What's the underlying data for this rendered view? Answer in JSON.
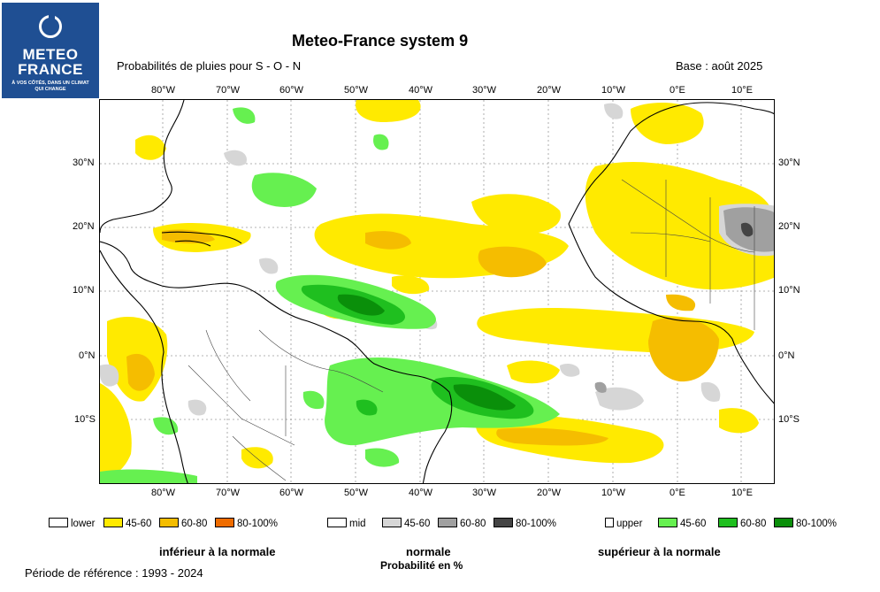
{
  "logo": {
    "line1": "METEO",
    "line2": "FRANCE",
    "tagline": "À VOS CÔTÉS, DANS UN CLIMAT QUI CHANGE"
  },
  "header": {
    "title": "Meteo-France system 9",
    "subtitle": "Probabilités de pluies pour S - O - N",
    "base": "Base : août 2025"
  },
  "map": {
    "lon_labels": [
      "80°W",
      "70°W",
      "60°W",
      "50°W",
      "40°W",
      "30°W",
      "20°W",
      "10°W",
      "0°E",
      "10°E"
    ],
    "lat_labels": [
      "30°N",
      "20°N",
      "10°N",
      "0°N",
      "10°S"
    ]
  },
  "legend": {
    "lower": [
      "lower",
      "45-60",
      "60-80",
      "80-100%"
    ],
    "mid": [
      "mid",
      "45-60",
      "60-80",
      "80-100%"
    ],
    "upper": [
      "upper",
      "45-60",
      "60-80",
      "80-100%"
    ],
    "colors": {
      "lower": [
        "#ffffff",
        "#ffea00",
        "#f5bd00",
        "#ef6c00"
      ],
      "mid": [
        "#ffffff",
        "#d6d6d6",
        "#a0a0a0",
        "#444444"
      ],
      "upper": [
        "#ffffff",
        "#66f050",
        "#1fbf1f",
        "#0a8f0a"
      ]
    }
  },
  "categories": {
    "lower": "inférieur à la normale",
    "normal": "normale",
    "upper": "supérieur à la normale",
    "unit": "Probabilité en %"
  },
  "footer": {
    "period": "Période de référence : 1993 - 2024"
  }
}
